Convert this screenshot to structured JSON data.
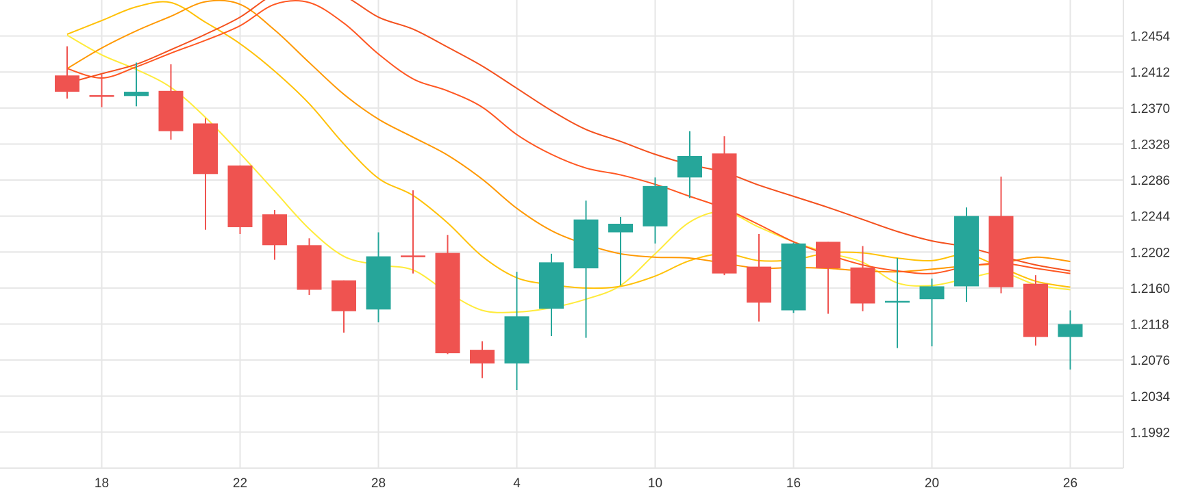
{
  "chart_data": {
    "type": "candlestick",
    "x_tick_labels": [
      "18",
      "22",
      "28",
      "4",
      "10",
      "16",
      "20",
      "26"
    ],
    "y_tick_labels": [
      "1.2454",
      "1.2412",
      "1.2370",
      "1.2328",
      "1.2286",
      "1.2244",
      "1.2202",
      "1.2160",
      "1.2118",
      "1.2076",
      "1.2034",
      "1.1992"
    ],
    "ylim": [
      1.195,
      1.2496
    ],
    "grid": true,
    "colors": {
      "up": "#26a69a",
      "down": "#ef5350",
      "grid": "#e6e6e6",
      "axis_text": "#333333"
    },
    "candles": [
      {
        "o": 1.2408,
        "h": 1.2442,
        "l": 1.2381,
        "c": 1.2389
      },
      {
        "o": 1.2385,
        "h": 1.2409,
        "l": 1.2371,
        "c": 1.2383
      },
      {
        "o": 1.2384,
        "h": 1.2423,
        "l": 1.2372,
        "c": 1.2389
      },
      {
        "o": 1.239,
        "h": 1.2421,
        "l": 1.2333,
        "c": 1.2343
      },
      {
        "o": 1.2352,
        "h": 1.2358,
        "l": 1.2228,
        "c": 1.2293
      },
      {
        "o": 1.2303,
        "h": 1.2303,
        "l": 1.2223,
        "c": 1.2231
      },
      {
        "o": 1.2246,
        "h": 1.2251,
        "l": 1.2193,
        "c": 1.221
      },
      {
        "o": 1.221,
        "h": 1.2218,
        "l": 1.2152,
        "c": 1.2158
      },
      {
        "o": 1.2169,
        "h": 1.2169,
        "l": 1.2108,
        "c": 1.2133
      },
      {
        "o": 1.2135,
        "h": 1.2225,
        "l": 1.212,
        "c": 1.2197
      },
      {
        "o": 1.2198,
        "h": 1.2274,
        "l": 1.2177,
        "c": 1.2197
      },
      {
        "o": 1.2201,
        "h": 1.2222,
        "l": 1.2083,
        "c": 1.2084
      },
      {
        "o": 1.2088,
        "h": 1.2098,
        "l": 1.2055,
        "c": 1.2072
      },
      {
        "o": 1.2072,
        "h": 1.2179,
        "l": 1.2041,
        "c": 1.2127
      },
      {
        "o": 1.2136,
        "h": 1.22,
        "l": 1.2104,
        "c": 1.219
      },
      {
        "o": 1.2183,
        "h": 1.2262,
        "l": 1.2102,
        "c": 1.224
      },
      {
        "o": 1.2225,
        "h": 1.2243,
        "l": 1.2163,
        "c": 1.2235
      },
      {
        "o": 1.2232,
        "h": 1.2289,
        "l": 1.2212,
        "c": 1.2279
      },
      {
        "o": 1.2289,
        "h": 1.2343,
        "l": 1.2265,
        "c": 1.2314
      },
      {
        "o": 1.2317,
        "h": 1.2337,
        "l": 1.2175,
        "c": 1.2177
      },
      {
        "o": 1.2185,
        "h": 1.2223,
        "l": 1.2121,
        "c": 1.2143
      },
      {
        "o": 1.2134,
        "h": 1.2213,
        "l": 1.2131,
        "c": 1.2212
      },
      {
        "o": 1.2214,
        "h": 1.2214,
        "l": 1.213,
        "c": 1.2183
      },
      {
        "o": 1.2184,
        "h": 1.2209,
        "l": 1.2133,
        "c": 1.2142
      },
      {
        "o": 1.2144,
        "h": 1.2195,
        "l": 1.209,
        "c": 1.2145
      },
      {
        "o": 1.2147,
        "h": 1.2171,
        "l": 1.2092,
        "c": 1.2162
      },
      {
        "o": 1.2162,
        "h": 1.2254,
        "l": 1.2144,
        "c": 1.2244
      },
      {
        "o": 1.2244,
        "h": 1.229,
        "l": 1.2154,
        "c": 1.2161
      },
      {
        "o": 1.2165,
        "h": 1.2175,
        "l": 1.2093,
        "c": 1.2103
      },
      {
        "o": 1.2103,
        "h": 1.2134,
        "l": 1.2065,
        "c": 1.2118
      }
    ],
    "moving_averages": [
      {
        "color": "#ffeb3b",
        "values": [
          1.2455,
          1.2432,
          1.2415,
          1.2394,
          1.2359,
          1.2317,
          1.2273,
          1.2229,
          1.2197,
          1.2187,
          1.2181,
          1.2155,
          1.2134,
          1.2132,
          1.2137,
          1.2147,
          1.2163,
          1.22,
          1.2237,
          1.2249,
          1.2231,
          1.2214,
          1.2201,
          1.219,
          1.2166,
          1.2163,
          1.2171,
          1.2178,
          1.2164,
          1.2158
        ]
      },
      {
        "color": "#ffc107",
        "values": [
          1.2456,
          1.2472,
          1.2488,
          1.2493,
          1.247,
          1.2445,
          1.2413,
          1.2375,
          1.2328,
          1.2288,
          1.2268,
          1.2236,
          1.2197,
          1.2172,
          1.2164,
          1.216,
          1.2162,
          1.2174,
          1.2192,
          1.22,
          1.2192,
          1.2193,
          1.2201,
          1.2201,
          1.2195,
          1.2192,
          1.2199,
          1.2184,
          1.2168,
          1.2161
        ]
      },
      {
        "color": "#ff9800",
        "values": [
          1.2416,
          1.244,
          1.246,
          1.2477,
          1.2494,
          1.2491,
          1.2461,
          1.2423,
          1.2386,
          1.2357,
          1.2336,
          1.2315,
          1.2287,
          1.2253,
          1.2227,
          1.2211,
          1.22,
          1.2196,
          1.2195,
          1.2189,
          1.2183,
          1.2184,
          1.2183,
          1.218,
          1.2179,
          1.2182,
          1.2186,
          1.2189,
          1.2196,
          1.2191
        ]
      },
      {
        "color": "#ff5722",
        "values": [
          1.2416,
          1.2405,
          1.2418,
          1.2434,
          1.2449,
          1.2466,
          1.2491,
          1.2493,
          1.2469,
          1.2433,
          1.2404,
          1.239,
          1.2371,
          1.2339,
          1.2316,
          1.23,
          1.2292,
          1.2281,
          1.2267,
          1.2253,
          1.2234,
          1.2214,
          1.2199,
          1.2187,
          1.218,
          1.2177,
          1.2185,
          1.2189,
          1.2183,
          1.2177
        ]
      },
      {
        "color": "#f4511e",
        "values": [
          1.2399,
          1.241,
          1.2421,
          1.2438,
          1.2456,
          1.2476,
          1.2503,
          1.2513,
          1.2501,
          1.2476,
          1.2462,
          1.2441,
          1.2419,
          1.2393,
          1.2367,
          1.2345,
          1.2331,
          1.2316,
          1.2304,
          1.2295,
          1.228,
          1.2267,
          1.2254,
          1.224,
          1.2226,
          1.2215,
          1.2208,
          1.2197,
          1.2187,
          1.218
        ]
      }
    ]
  }
}
